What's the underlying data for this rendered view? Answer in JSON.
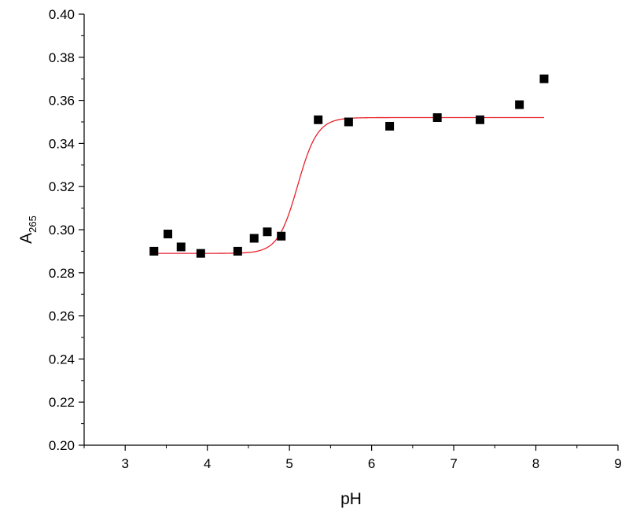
{
  "chart_data": {
    "type": "scatter",
    "xlabel": "pH",
    "ylabel_main": "A",
    "ylabel_sub": "265",
    "xlim": [
      2.5,
      9
    ],
    "ylim": [
      0.2,
      0.4
    ],
    "xticks": [
      "3",
      "4",
      "5",
      "6",
      "7",
      "8",
      "9"
    ],
    "yticks": [
      "0.20",
      "0.22",
      "0.24",
      "0.26",
      "0.28",
      "0.30",
      "0.32",
      "0.34",
      "0.36",
      "0.38",
      "0.40"
    ],
    "grid": false,
    "series": [
      {
        "type": "scatter",
        "color": "#000000",
        "marker": "square",
        "x": [
          3.35,
          3.52,
          3.68,
          3.92,
          4.37,
          4.57,
          4.73,
          4.9,
          5.35,
          5.72,
          6.22,
          6.8,
          7.32,
          7.8,
          8.1
        ],
        "y": [
          0.29,
          0.298,
          0.292,
          0.289,
          0.29,
          0.296,
          0.299,
          0.297,
          0.351,
          0.35,
          0.348,
          0.352,
          0.351,
          0.358,
          0.37
        ]
      },
      {
        "type": "line",
        "color": "#e8212b",
        "fit": "sigmoid",
        "fit_params": {
          "bottom": 0.289,
          "top": 0.352,
          "x0": 5.1,
          "slope": 0.12
        },
        "x_range": [
          3.35,
          8.1
        ]
      }
    ]
  }
}
